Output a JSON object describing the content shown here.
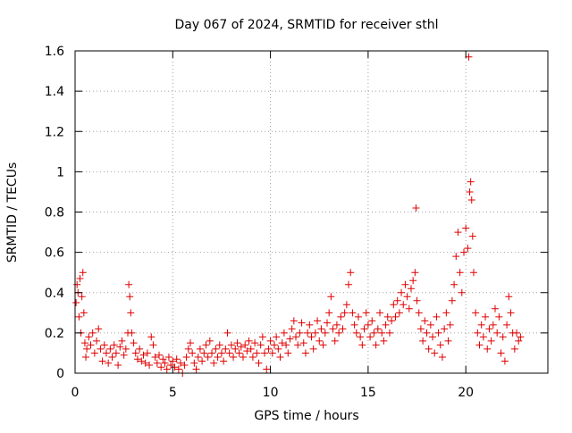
{
  "chart_data": {
    "type": "scatter",
    "title": "Day 067 of 2024, SRMTID for receiver sthl",
    "xlabel": "GPS time / hours",
    "ylabel": "SRMTID / TECUs",
    "xlim": [
      0,
      24.2
    ],
    "ylim": [
      0,
      1.6
    ],
    "xticks": [
      0,
      5,
      10,
      15,
      20
    ],
    "yticks": [
      0,
      0.2,
      0.4,
      0.6,
      0.8,
      1,
      1.2,
      1.4,
      1.6
    ],
    "xtick_labels": [
      "0",
      "5",
      "10",
      "15",
      "20"
    ],
    "ytick_labels": [
      "0",
      "0.2",
      "0.4",
      "0.6",
      "0.8",
      "1",
      "1.2",
      "1.4",
      "1.6"
    ],
    "grid": true,
    "marker": "+",
    "marker_color": "#e00000",
    "series": [
      {
        "name": "sthl",
        "points": [
          [
            0.05,
            0.35
          ],
          [
            0.1,
            0.44
          ],
          [
            0.15,
            0.4
          ],
          [
            0.2,
            0.28
          ],
          [
            0.25,
            0.47
          ],
          [
            0.3,
            0.2
          ],
          [
            0.35,
            0.38
          ],
          [
            0.4,
            0.5
          ],
          [
            0.45,
            0.3
          ],
          [
            0.5,
            0.15
          ],
          [
            0.55,
            0.08
          ],
          [
            0.6,
            0.12
          ],
          [
            0.7,
            0.18
          ],
          [
            0.8,
            0.14
          ],
          [
            0.9,
            0.2
          ],
          [
            1.0,
            0.1
          ],
          [
            1.1,
            0.16
          ],
          [
            1.2,
            0.22
          ],
          [
            1.3,
            0.12
          ],
          [
            1.4,
            0.06
          ],
          [
            1.5,
            0.14
          ],
          [
            1.6,
            0.1
          ],
          [
            1.7,
            0.05
          ],
          [
            1.8,
            0.12
          ],
          [
            1.9,
            0.08
          ],
          [
            2.0,
            0.14
          ],
          [
            2.1,
            0.1
          ],
          [
            2.2,
            0.04
          ],
          [
            2.3,
            0.13
          ],
          [
            2.4,
            0.16
          ],
          [
            2.5,
            0.09
          ],
          [
            2.6,
            0.12
          ],
          [
            2.7,
            0.2
          ],
          [
            2.75,
            0.44
          ],
          [
            2.8,
            0.38
          ],
          [
            2.85,
            0.3
          ],
          [
            2.9,
            0.2
          ],
          [
            3.0,
            0.15
          ],
          [
            3.1,
            0.1
          ],
          [
            3.2,
            0.07
          ],
          [
            3.3,
            0.12
          ],
          [
            3.4,
            0.06
          ],
          [
            3.5,
            0.09
          ],
          [
            3.6,
            0.05
          ],
          [
            3.7,
            0.1
          ],
          [
            3.8,
            0.04
          ],
          [
            3.9,
            0.18
          ],
          [
            4.0,
            0.14
          ],
          [
            4.1,
            0.08
          ],
          [
            4.2,
            0.05
          ],
          [
            4.3,
            0.09
          ],
          [
            4.4,
            0.03
          ],
          [
            4.5,
            0.07
          ],
          [
            4.6,
            0.05
          ],
          [
            4.7,
            0.02
          ],
          [
            4.8,
            0.08
          ],
          [
            4.9,
            0.04
          ],
          [
            5.0,
            0.06
          ],
          [
            5.1,
            0.03
          ],
          [
            5.2,
            0.07
          ],
          [
            5.3,
            0.02
          ],
          [
            5.4,
            0.05
          ],
          [
            5.5,
            0.0
          ],
          [
            5.6,
            0.04
          ],
          [
            5.7,
            0.08
          ],
          [
            5.8,
            0.12
          ],
          [
            5.9,
            0.15
          ],
          [
            6.0,
            0.1
          ],
          [
            6.1,
            0.05
          ],
          [
            6.2,
            0.02
          ],
          [
            6.3,
            0.08
          ],
          [
            6.4,
            0.12
          ],
          [
            6.5,
            0.06
          ],
          [
            6.6,
            0.1
          ],
          [
            6.7,
            0.14
          ],
          [
            6.8,
            0.08
          ],
          [
            6.9,
            0.16
          ],
          [
            7.0,
            0.1
          ],
          [
            7.1,
            0.05
          ],
          [
            7.2,
            0.12
          ],
          [
            7.3,
            0.08
          ],
          [
            7.4,
            0.14
          ],
          [
            7.5,
            0.1
          ],
          [
            7.6,
            0.06
          ],
          [
            7.7,
            0.12
          ],
          [
            7.8,
            0.2
          ],
          [
            7.9,
            0.1
          ],
          [
            8.0,
            0.14
          ],
          [
            8.1,
            0.08
          ],
          [
            8.2,
            0.12
          ],
          [
            8.3,
            0.15
          ],
          [
            8.4,
            0.1
          ],
          [
            8.5,
            0.13
          ],
          [
            8.6,
            0.08
          ],
          [
            8.7,
            0.14
          ],
          [
            8.8,
            0.11
          ],
          [
            8.9,
            0.16
          ],
          [
            9.0,
            0.12
          ],
          [
            9.1,
            0.08
          ],
          [
            9.2,
            0.15
          ],
          [
            9.3,
            0.1
          ],
          [
            9.4,
            0.05
          ],
          [
            9.5,
            0.14
          ],
          [
            9.6,
            0.18
          ],
          [
            9.7,
            0.1
          ],
          [
            9.8,
            0.02
          ],
          [
            9.9,
            0.12
          ],
          [
            10.0,
            0.16
          ],
          [
            10.1,
            0.1
          ],
          [
            10.2,
            0.14
          ],
          [
            10.3,
            0.18
          ],
          [
            10.4,
            0.12
          ],
          [
            10.5,
            0.08
          ],
          [
            10.6,
            0.15
          ],
          [
            10.7,
            0.2
          ],
          [
            10.8,
            0.14
          ],
          [
            10.9,
            0.1
          ],
          [
            11.0,
            0.17
          ],
          [
            11.1,
            0.22
          ],
          [
            11.2,
            0.26
          ],
          [
            11.3,
            0.18
          ],
          [
            11.4,
            0.14
          ],
          [
            11.5,
            0.2
          ],
          [
            11.6,
            0.25
          ],
          [
            11.7,
            0.15
          ],
          [
            11.8,
            0.1
          ],
          [
            11.9,
            0.2
          ],
          [
            12.0,
            0.24
          ],
          [
            12.1,
            0.18
          ],
          [
            12.2,
            0.12
          ],
          [
            12.3,
            0.2
          ],
          [
            12.4,
            0.26
          ],
          [
            12.5,
            0.16
          ],
          [
            12.6,
            0.22
          ],
          [
            12.7,
            0.14
          ],
          [
            12.8,
            0.2
          ],
          [
            12.9,
            0.25
          ],
          [
            13.0,
            0.3
          ],
          [
            13.1,
            0.38
          ],
          [
            13.2,
            0.22
          ],
          [
            13.3,
            0.16
          ],
          [
            13.4,
            0.24
          ],
          [
            13.5,
            0.2
          ],
          [
            13.6,
            0.28
          ],
          [
            13.7,
            0.22
          ],
          [
            13.8,
            0.3
          ],
          [
            13.9,
            0.34
          ],
          [
            14.0,
            0.44
          ],
          [
            14.1,
            0.5
          ],
          [
            14.2,
            0.3
          ],
          [
            14.3,
            0.24
          ],
          [
            14.4,
            0.2
          ],
          [
            14.5,
            0.28
          ],
          [
            14.6,
            0.18
          ],
          [
            14.7,
            0.14
          ],
          [
            14.8,
            0.22
          ],
          [
            14.9,
            0.3
          ],
          [
            15.0,
            0.24
          ],
          [
            15.1,
            0.18
          ],
          [
            15.2,
            0.26
          ],
          [
            15.3,
            0.2
          ],
          [
            15.4,
            0.14
          ],
          [
            15.5,
            0.22
          ],
          [
            15.6,
            0.3
          ],
          [
            15.7,
            0.2
          ],
          [
            15.8,
            0.16
          ],
          [
            15.9,
            0.24
          ],
          [
            16.0,
            0.28
          ],
          [
            16.1,
            0.2
          ],
          [
            16.2,
            0.26
          ],
          [
            16.3,
            0.34
          ],
          [
            16.4,
            0.28
          ],
          [
            16.5,
            0.36
          ],
          [
            16.6,
            0.3
          ],
          [
            16.7,
            0.4
          ],
          [
            16.8,
            0.34
          ],
          [
            16.9,
            0.44
          ],
          [
            17.0,
            0.38
          ],
          [
            17.1,
            0.32
          ],
          [
            17.2,
            0.42
          ],
          [
            17.3,
            0.46
          ],
          [
            17.4,
            0.5
          ],
          [
            17.45,
            0.82
          ],
          [
            17.5,
            0.36
          ],
          [
            17.6,
            0.3
          ],
          [
            17.7,
            0.22
          ],
          [
            17.8,
            0.16
          ],
          [
            17.9,
            0.26
          ],
          [
            18.0,
            0.2
          ],
          [
            18.1,
            0.12
          ],
          [
            18.2,
            0.24
          ],
          [
            18.3,
            0.18
          ],
          [
            18.4,
            0.1
          ],
          [
            18.5,
            0.28
          ],
          [
            18.6,
            0.2
          ],
          [
            18.7,
            0.14
          ],
          [
            18.8,
            0.08
          ],
          [
            18.9,
            0.22
          ],
          [
            19.0,
            0.3
          ],
          [
            19.1,
            0.16
          ],
          [
            19.2,
            0.24
          ],
          [
            19.3,
            0.36
          ],
          [
            19.4,
            0.44
          ],
          [
            19.5,
            0.58
          ],
          [
            19.6,
            0.7
          ],
          [
            19.7,
            0.5
          ],
          [
            19.8,
            0.4
          ],
          [
            19.9,
            0.6
          ],
          [
            20.0,
            0.72
          ],
          [
            20.1,
            0.62
          ],
          [
            20.15,
            1.57
          ],
          [
            20.2,
            0.9
          ],
          [
            20.25,
            0.95
          ],
          [
            20.3,
            0.86
          ],
          [
            20.35,
            0.68
          ],
          [
            20.4,
            0.5
          ],
          [
            20.5,
            0.3
          ],
          [
            20.6,
            0.2
          ],
          [
            20.7,
            0.14
          ],
          [
            20.8,
            0.24
          ],
          [
            20.9,
            0.18
          ],
          [
            21.0,
            0.28
          ],
          [
            21.1,
            0.12
          ],
          [
            21.2,
            0.22
          ],
          [
            21.3,
            0.16
          ],
          [
            21.4,
            0.24
          ],
          [
            21.5,
            0.32
          ],
          [
            21.6,
            0.2
          ],
          [
            21.7,
            0.28
          ],
          [
            21.8,
            0.1
          ],
          [
            21.9,
            0.18
          ],
          [
            22.0,
            0.06
          ],
          [
            22.1,
            0.24
          ],
          [
            22.2,
            0.38
          ],
          [
            22.3,
            0.3
          ],
          [
            22.4,
            0.2
          ],
          [
            22.5,
            0.12
          ],
          [
            22.6,
            0.2
          ],
          [
            22.7,
            0.16
          ],
          [
            22.8,
            0.18
          ]
        ]
      }
    ]
  }
}
